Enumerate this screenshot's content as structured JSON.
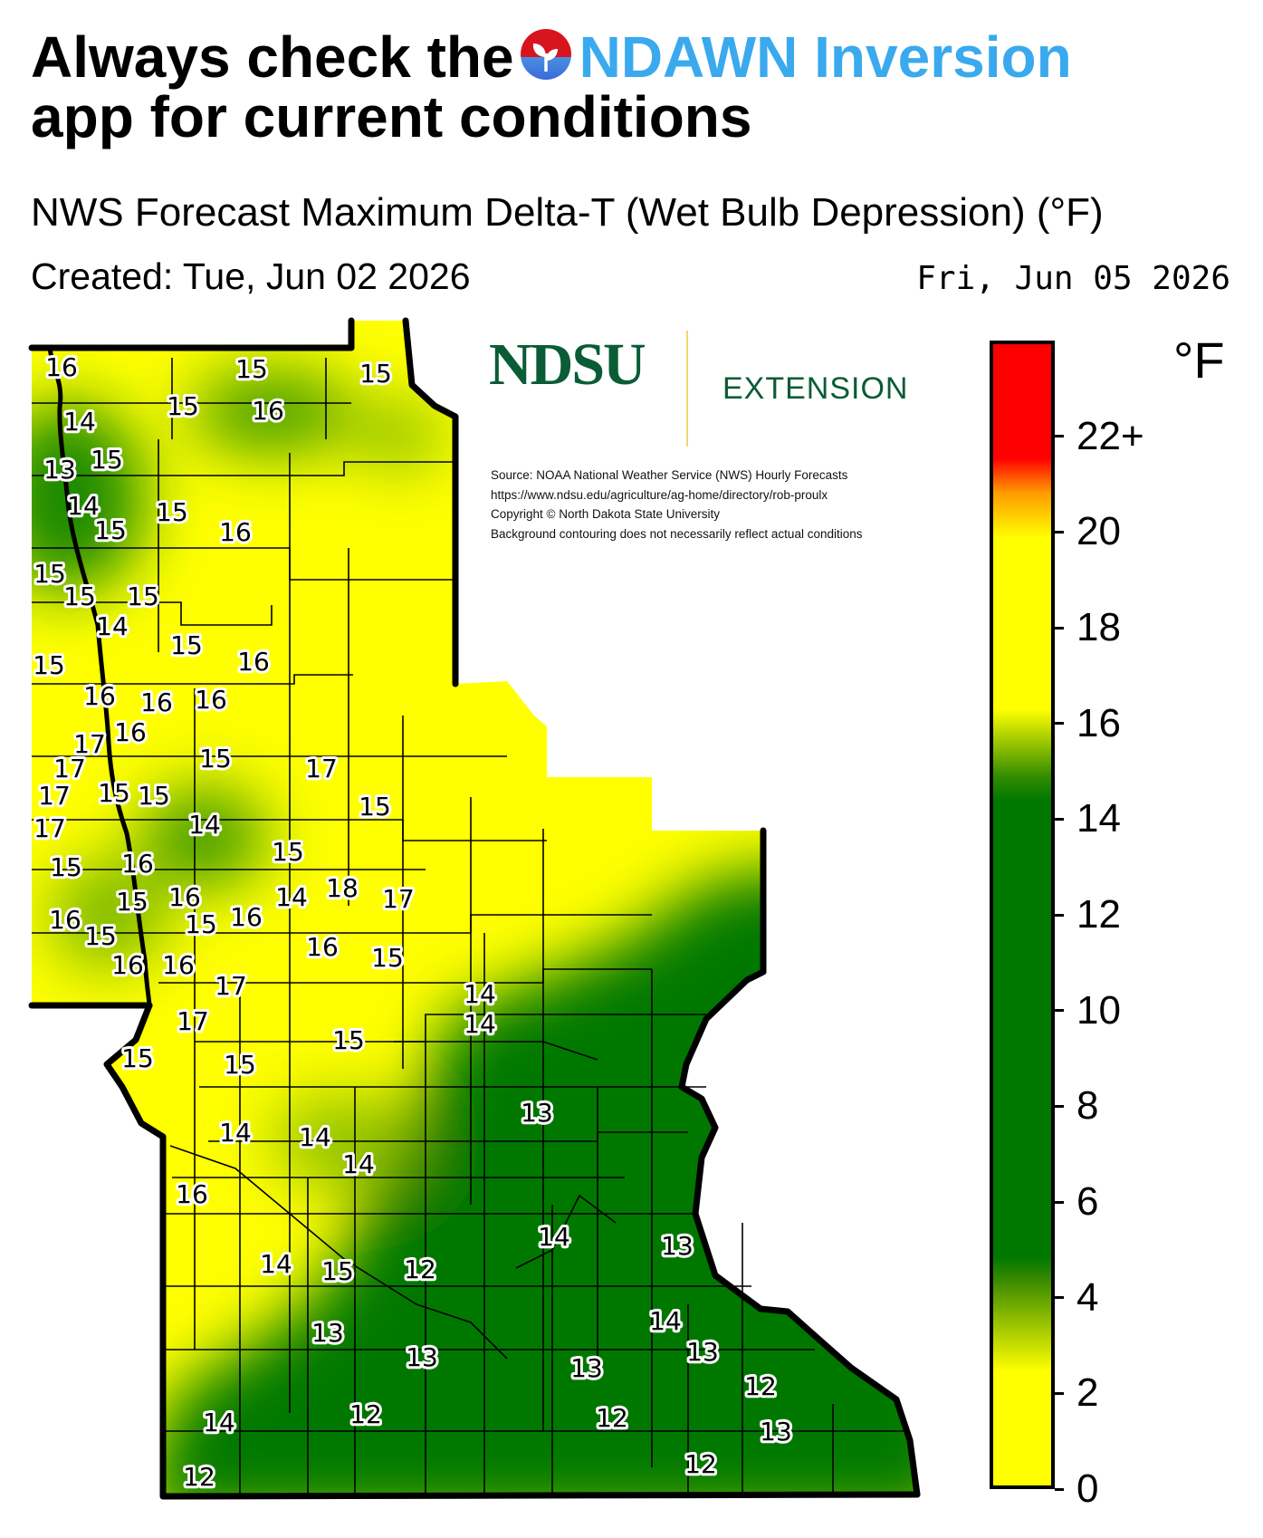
{
  "headline": {
    "prefix": "Always check the",
    "app_name": "NDAWN Inversion",
    "suffix": "app for current conditions"
  },
  "subtitle": "NWS Forecast Maximum Delta-T (Wet Bulb Depression) (°F)",
  "created": "Created: Tue, Jun 02 2026",
  "forecast_date": "Fri, Jun 05 2026",
  "logo": {
    "name": "NDSU",
    "division": "EXTENSION"
  },
  "credits": [
    "Source: NOAA National Weather Service (NWS) Hourly Forecasts",
    "https://www.ndsu.edu/agriculture/ag-home/directory/rob-proulx",
    "Copyright © North Dakota State University",
    "Background contouring does not necessarily reflect actual conditions"
  ],
  "legend": {
    "unit": "°F",
    "ticks": [
      "0",
      "2",
      "4",
      "6",
      "8",
      "10",
      "12",
      "14",
      "16",
      "18",
      "20",
      "22+"
    ],
    "min": 0,
    "max": 24,
    "colors": {
      "low": "#ffff00",
      "mid": "#007800",
      "high": "#ff0000"
    }
  },
  "station_values": [
    "16",
    "15",
    "15",
    "15",
    "16",
    "14",
    "13",
    "15",
    "14",
    "15",
    "15",
    "16",
    "15",
    "15",
    "15",
    "14",
    "15",
    "15",
    "16",
    "16",
    "16",
    "16",
    "17",
    "16",
    "17",
    "15",
    "17",
    "15",
    "15",
    "17",
    "15",
    "14",
    "17",
    "16",
    "15",
    "15",
    "16",
    "14",
    "15",
    "16",
    "18",
    "17",
    "15",
    "15",
    "16",
    "16",
    "16",
    "16",
    "15",
    "14",
    "17",
    "14",
    "17",
    "15",
    "15",
    "15",
    "13",
    "14",
    "14",
    "14",
    "16",
    "14",
    "14",
    "13",
    "15",
    "12",
    "13",
    "14",
    "13",
    "13",
    "13",
    "12",
    "14",
    "12",
    "12",
    "13",
    "12",
    "12"
  ]
}
